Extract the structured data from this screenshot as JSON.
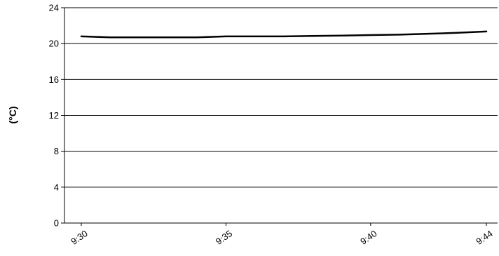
{
  "chart_data": {
    "type": "line",
    "title": "",
    "xlabel": "",
    "ylabel": "(°C)",
    "x_ticks": [
      "9:30",
      "9:35",
      "9:40",
      "9:44"
    ],
    "y_ticks": [
      0,
      4,
      8,
      12,
      16,
      20,
      24
    ],
    "ylim": [
      0,
      24
    ],
    "grid": "horizontal",
    "legend": "none",
    "colors": {
      "line": "#000000",
      "grid": "#000000",
      "axis": "#000000"
    },
    "series": [
      {
        "x": [
          "9:30",
          "9:31",
          "9:32",
          "9:33",
          "9:34",
          "9:35",
          "9:36",
          "9:37",
          "9:38",
          "9:39",
          "9:40",
          "9:41",
          "9:42",
          "9:43",
          "9:44"
        ],
        "y": [
          20.8,
          20.7,
          20.7,
          20.7,
          20.7,
          20.8,
          20.8,
          20.8,
          20.85,
          20.9,
          20.95,
          21.0,
          21.1,
          21.2,
          21.35
        ]
      }
    ]
  }
}
